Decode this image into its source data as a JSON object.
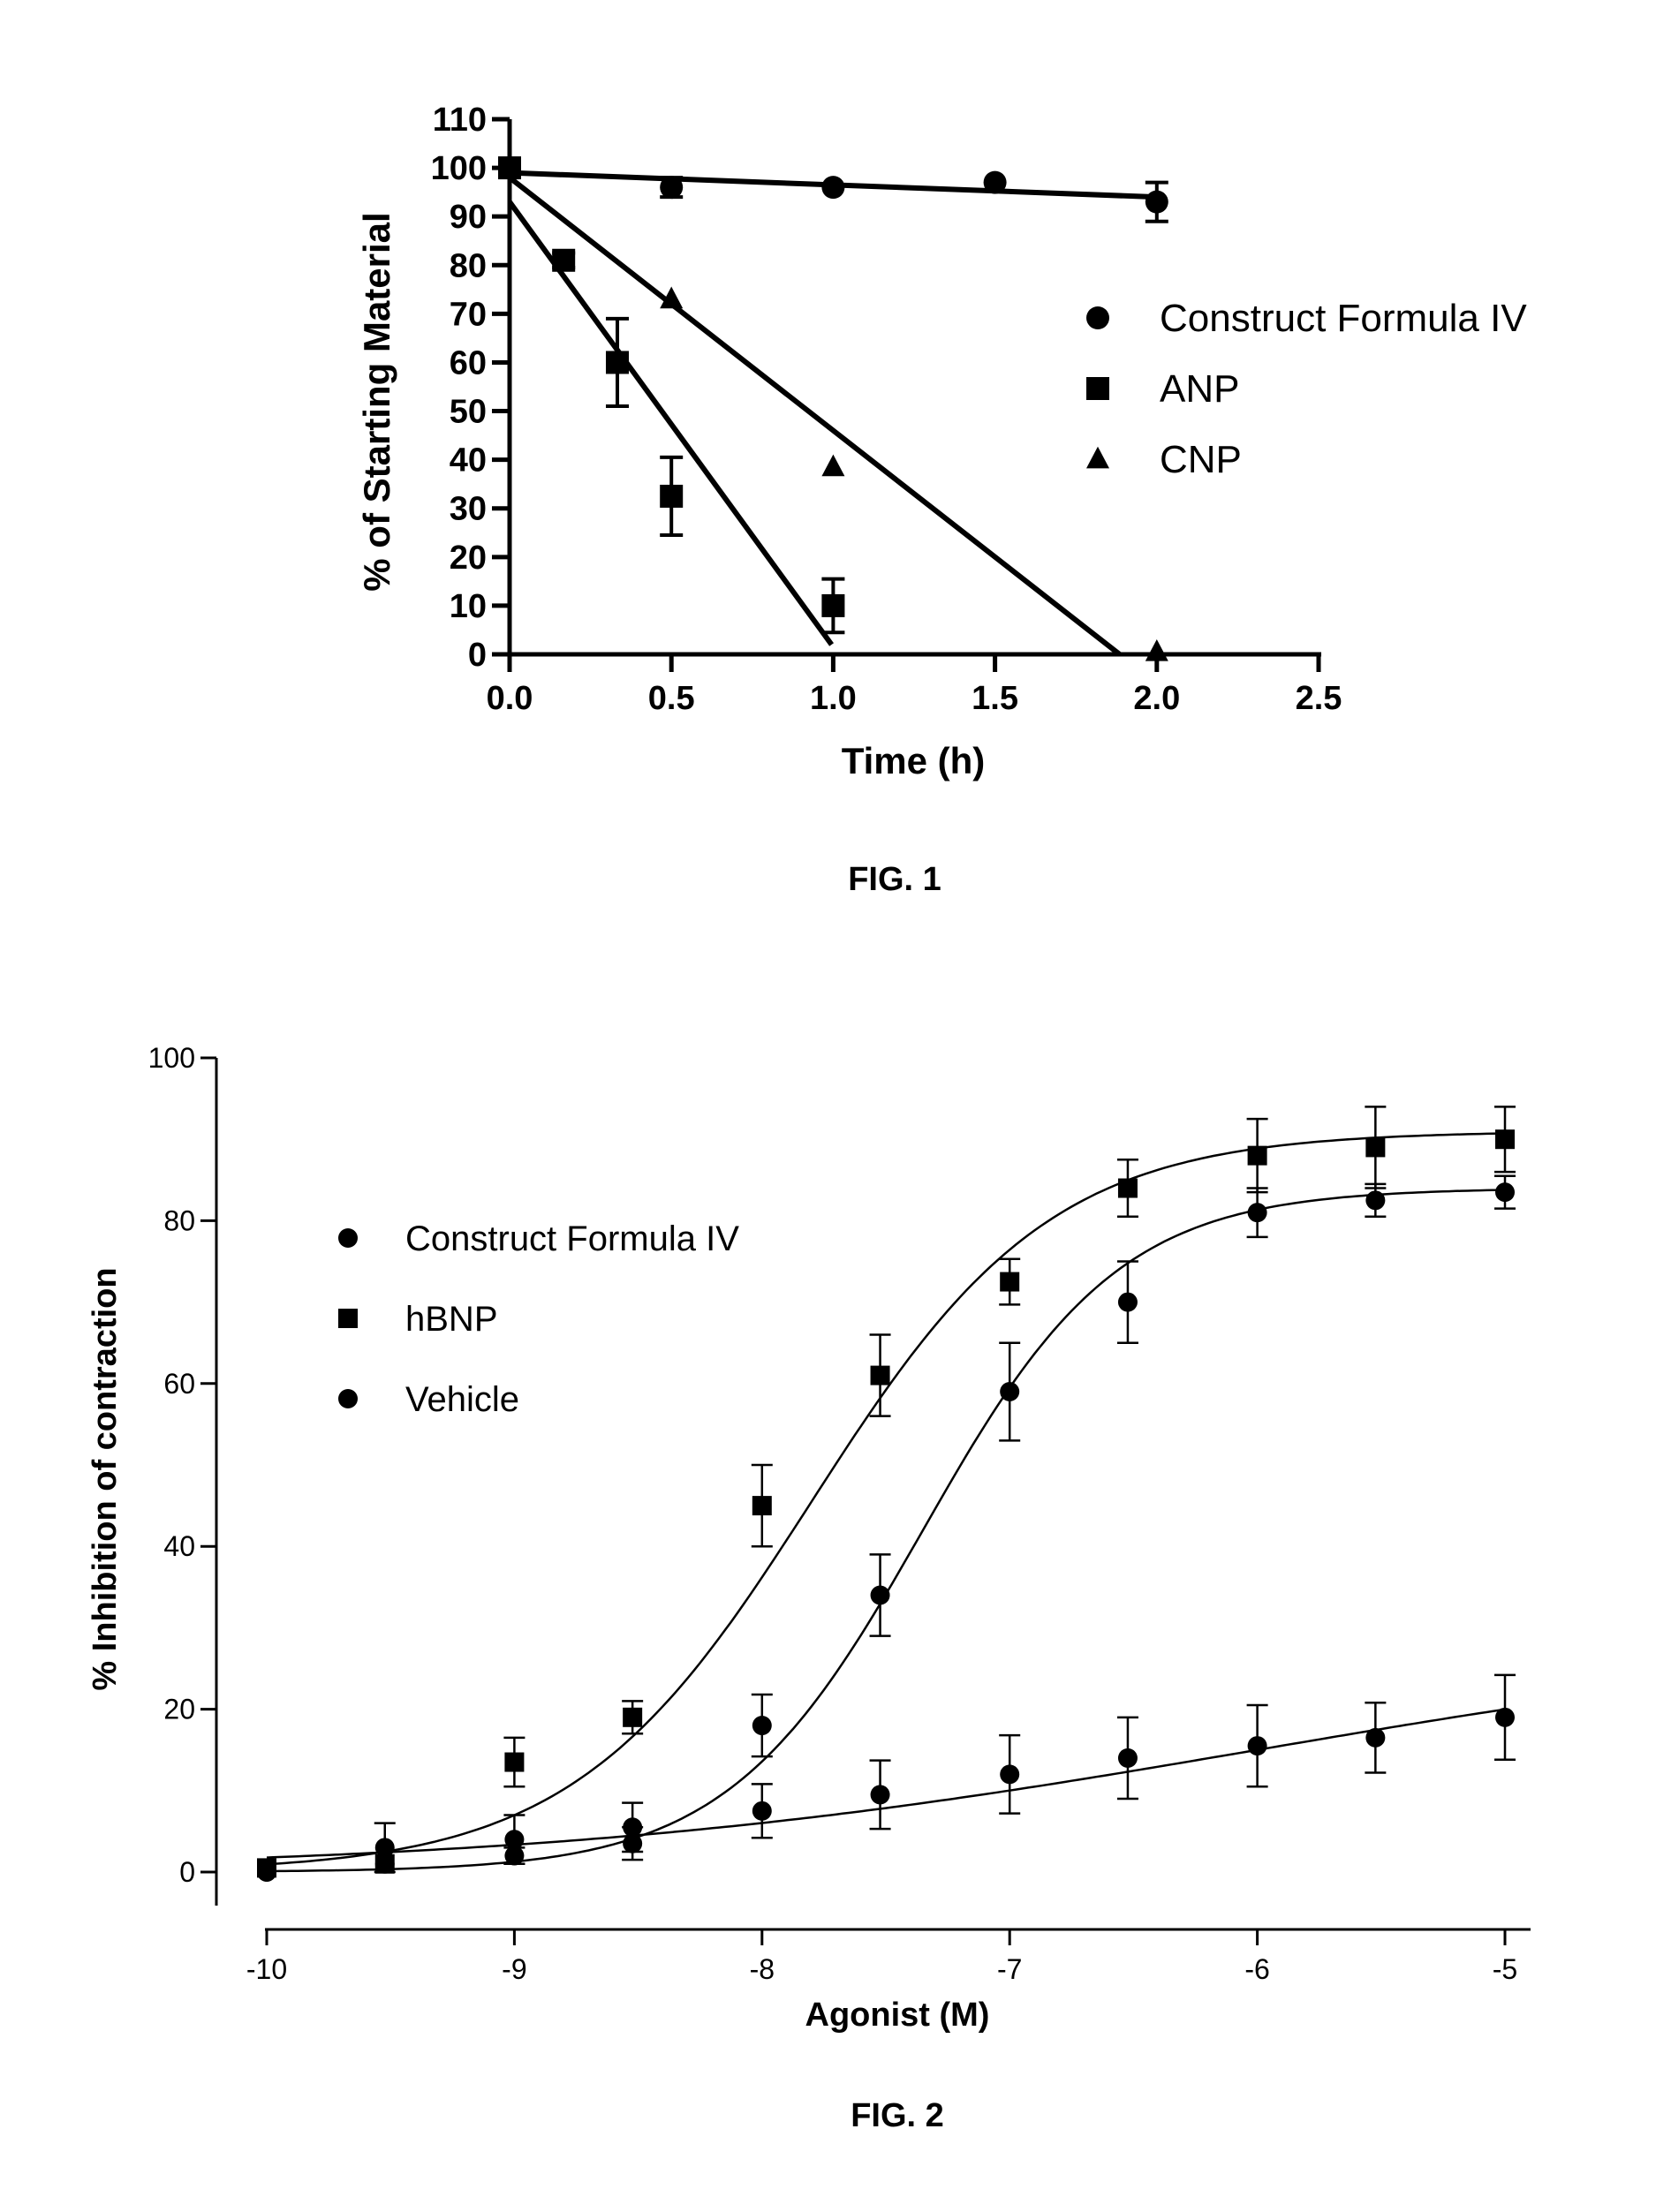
{
  "chart_data": [
    {
      "type": "scatter",
      "figure_label": "FIG. 1",
      "title": "",
      "xlabel": "Time (h)",
      "ylabel": "% of Starting Material",
      "xlim": [
        0,
        2.5
      ],
      "ylim": [
        0,
        110
      ],
      "xticks": [
        "0.0",
        "0.5",
        "1.0",
        "1.5",
        "2.0",
        "2.5"
      ],
      "yticks": [
        "0",
        "10",
        "20",
        "30",
        "40",
        "50",
        "60",
        "70",
        "80",
        "90",
        "100",
        "110"
      ],
      "grid": false,
      "legend_position": "right",
      "series": [
        {
          "name": "Construct Formula IV",
          "marker": "circle",
          "points": [
            {
              "x": 0,
              "y": 100,
              "err": 1
            },
            {
              "x": 0.5,
              "y": 96,
              "err": 2
            },
            {
              "x": 1.0,
              "y": 96,
              "err": 1
            },
            {
              "x": 1.5,
              "y": 97,
              "err": 1
            },
            {
              "x": 2.0,
              "y": 93,
              "err": 4
            }
          ],
          "fit": [
            [
              0,
              99
            ],
            [
              2.0,
              94
            ]
          ]
        },
        {
          "name": "ANP",
          "marker": "square",
          "points": [
            {
              "x": 0,
              "y": 100,
              "err": 1
            },
            {
              "x": 0.167,
              "y": 81,
              "err": 1.5
            },
            {
              "x": 0.333,
              "y": 60,
              "err": 9
            },
            {
              "x": 0.5,
              "y": 32.5,
              "err": 8
            },
            {
              "x": 1.0,
              "y": 10,
              "err": 5.5
            }
          ],
          "fit": [
            [
              0,
              93
            ],
            [
              0.995,
              2
            ]
          ]
        },
        {
          "name": "CNP",
          "marker": "triangle",
          "points": [
            {
              "x": 0,
              "y": 100,
              "err": 1
            },
            {
              "x": 0.5,
              "y": 73,
              "err": 1
            },
            {
              "x": 1.0,
              "y": 38.5,
              "err": 1
            },
            {
              "x": 2.0,
              "y": 0.5,
              "err": 0.5
            }
          ],
          "fit": [
            [
              0,
              98
            ],
            [
              1.885,
              0
            ]
          ]
        }
      ]
    },
    {
      "type": "line",
      "figure_label": "FIG. 2",
      "title": "",
      "xlabel": "Agonist (M)",
      "ylabel": "% Inhibition of contraction",
      "xlim": [
        -10,
        -5
      ],
      "ylim": [
        0,
        100
      ],
      "xticks": [
        "-10",
        "-9",
        "-8",
        "-7",
        "-6",
        "-5"
      ],
      "yticks": [
        "0",
        "20",
        "40",
        "60",
        "80",
        "100"
      ],
      "grid": false,
      "legend_position": "top-left",
      "series": [
        {
          "name": "Construct Formula IV",
          "marker": "circle",
          "fit": {
            "bottom": 0,
            "top": 84,
            "logEC50": -7.35,
            "hill": 1.1
          },
          "points": [
            {
              "x": -10,
              "y": 0,
              "err": 0.5
            },
            {
              "x": -9.523,
              "y": 1,
              "err": 0.5
            },
            {
              "x": -9,
              "y": 2,
              "err": 1
            },
            {
              "x": -8.523,
              "y": 3.5,
              "err": 2
            },
            {
              "x": -8,
              "y": 18,
              "err": 3.8
            },
            {
              "x": -7.523,
              "y": 34,
              "err": 5
            },
            {
              "x": -7,
              "y": 59,
              "err": 6
            },
            {
              "x": -6.523,
              "y": 70,
              "err": 5
            },
            {
              "x": -6,
              "y": 81,
              "err": 3
            },
            {
              "x": -5.523,
              "y": 82.5,
              "err": 2
            },
            {
              "x": -5,
              "y": 83.5,
              "err": 2
            }
          ]
        },
        {
          "name": "hBNP",
          "marker": "square",
          "fit": {
            "bottom": 0,
            "top": 91,
            "logEC50": -7.8,
            "hill": 0.9
          },
          "points": [
            {
              "x": -10,
              "y": 0.5,
              "err": 0.5
            },
            {
              "x": -9.523,
              "y": 1,
              "err": 0.5
            },
            {
              "x": -9,
              "y": 13.5,
              "err": 3
            },
            {
              "x": -8.523,
              "y": 19,
              "err": 2
            },
            {
              "x": -8,
              "y": 45,
              "err": 5
            },
            {
              "x": -7.523,
              "y": 61,
              "err": 5
            },
            {
              "x": -7,
              "y": 72.5,
              "err": 2.8
            },
            {
              "x": -6.523,
              "y": 84,
              "err": 3.5
            },
            {
              "x": -6,
              "y": 88,
              "err": 4.5
            },
            {
              "x": -5.523,
              "y": 89,
              "err": 5
            },
            {
              "x": -5,
              "y": 90,
              "err": 4
            }
          ]
        },
        {
          "name": "Vehicle",
          "marker": "circle",
          "fit": {
            "bottom": 0,
            "top": 30,
            "logEC50": -6.0,
            "hill": 0.3
          },
          "points": [
            {
              "x": -10,
              "y": 0,
              "err": 0.5
            },
            {
              "x": -9.523,
              "y": 3,
              "err": 3
            },
            {
              "x": -9,
              "y": 4,
              "err": 3
            },
            {
              "x": -8.523,
              "y": 5.5,
              "err": 3
            },
            {
              "x": -8,
              "y": 7.5,
              "err": 3.3
            },
            {
              "x": -7.523,
              "y": 9.5,
              "err": 4.2
            },
            {
              "x": -7,
              "y": 12,
              "err": 4.8
            },
            {
              "x": -6.523,
              "y": 14,
              "err": 5
            },
            {
              "x": -6,
              "y": 15.5,
              "err": 5
            },
            {
              "x": -5.523,
              "y": 16.5,
              "err": 4.3
            },
            {
              "x": -5,
              "y": 19,
              "err": 5.2
            }
          ]
        }
      ]
    }
  ]
}
